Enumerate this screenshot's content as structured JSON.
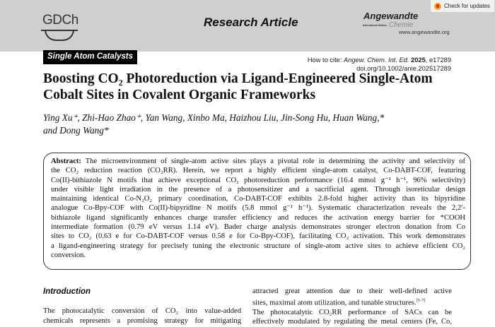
{
  "header": {
    "publisher_logo": "GDCh",
    "section": "Research Article",
    "journal_logo": {
      "name": "Angewandte",
      "edition": "International Edition",
      "sub": "Chemie"
    },
    "journal_url": "www.angewandte.org",
    "check_updates": "Check for updates",
    "colors": {
      "band": "#cfcfcf"
    }
  },
  "citation": {
    "prefix": "How to cite: ",
    "journal": "Angew. Chem. Int. Ed.",
    "year": "2025",
    "article": ", e17289",
    "doi": "doi.org/10.1002/anie.202517289"
  },
  "category": "Single Atom Catalysts",
  "title": "Boosting CO₂ Photoreduction via Ligand-Engineered Single-Atom Cobalt Sites in Covalent Organic Frameworks",
  "authors": {
    "line1": "Ying Xu⁺, Zhi-Hao Zhao⁺, Yan Wang, Xinbo Ma, Haizhou Liu, Jin-Song Hu, Huan Wang,*",
    "line2": "and Dong Wang*"
  },
  "abstract": {
    "label": "Abstract:",
    "lines": [
      " The microenvironment of single-atom active sites plays a pivotal role in determining the activity and selectivity of",
      "the CO₂ reduction reaction (CO₂RR). Herein, we report a highly efficient single-atom catalyst, Co-DABT-COF, featuring",
      "Co(II)-bithiazole N motifs that achieve exceptional CO₂ photoreduction performance (16.4 mmol g⁻¹ h⁻¹, 96% selectivity)",
      "under visible light irradiation in the presence of a photosensitizer and a sacrificial agent. Through isoreticular design",
      "maintaining identical Co-N₂O₂ primary coordination, Co-DABT-COF exhibits 2.8-fold higher activity than its bipyridine",
      "analogue Co-Bpy-COF with Co(II)-bipyridine N motifs (5.8 mmol g⁻¹ h⁻¹). Systematic characterization reveals the 2,2′-",
      "bithiazole ligand significantly enhances charge transfer efficiency and reduces the activation energy barrier for *COOH",
      "intermediate formation (0.79 eV versus 1.14 eV). Bader charge analysis demonstrates stronger electron donation from Co",
      "sites to CO₂ (0.63 e for Co-DABT-COF versus 0.58 e for Co-Bpy-COF), facilitating CO₂ activation. This work demonstrates",
      "a ligand-engineering strategy for precisely tuning the electronic structure of single-atom active sites to achieve efficient CO₂",
      "conversion."
    ]
  },
  "introduction": {
    "heading": "Introduction",
    "left_lines": [
      "The photocatalytic conversion of CO₂ into value-added",
      "chemicals represents a promising strategy for mitigating"
    ],
    "right_lines": [
      "attracted great attention due to their well-defined active",
      "sites, maximal atom utilization, and tunable structures.",
      "The photocatalytic CO₂RR performance of SACs can be",
      "effectively modulated by regulating the metal centers (Fe, Co,"
    ],
    "right_ref": "[5–7]"
  }
}
